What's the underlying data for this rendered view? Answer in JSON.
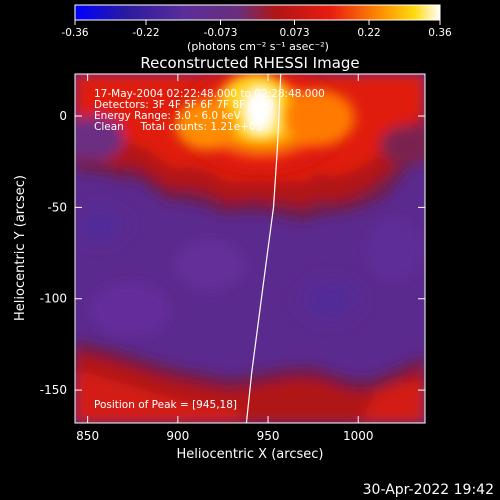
{
  "chart_data": {
    "type": "heatmap",
    "title": "Reconstructed RHESSI Image",
    "xlabel": "Heliocentric X (arcsec)",
    "ylabel": "Heliocentric Y (arcsec)",
    "xlim": [
      843,
      1037
    ],
    "ylim": [
      -168,
      23
    ],
    "x_ticks": [
      850,
      900,
      950,
      1000
    ],
    "y_ticks": [
      0,
      -50,
      -100,
      -150
    ],
    "colorbar": {
      "min": -0.36,
      "max": 0.36,
      "tick_values": [
        -0.36,
        -0.22,
        -0.073,
        0.073,
        0.22,
        0.36
      ],
      "tick_labels": [
        "-0.36",
        "-0.22",
        "-0.073",
        "0.073",
        "0.22",
        "0.36"
      ],
      "unit": "(photons cm⁻² s⁻¹ asec⁻²)",
      "colors": [
        "#0000ff",
        "#3a1a7a",
        "#6a2d9f",
        "#9a1a1a",
        "#e01010",
        "#ff8000",
        "#ffd000",
        "#ffffff"
      ]
    },
    "annotations": [
      "17-May-2004 02:22:48.000 to 02:28:48.000",
      "Detectors: 3F 4F 5F 6F 7F 8F  Att 0",
      "Energy Range: 3.0 - 6.0 keV",
      "Clean     Total counts: 1.21e+05"
    ],
    "peak_label": "Position of Peak = [945,18]",
    "peak": [
      945,
      18
    ],
    "limb_curve": [
      [
        938,
        -168
      ],
      [
        941,
        -140
      ],
      [
        945,
        -110
      ],
      [
        949,
        -80
      ],
      [
        953,
        -50
      ],
      [
        955,
        -20
      ],
      [
        956,
        0
      ],
      [
        957,
        23
      ]
    ]
  },
  "timestamp": "30-Apr-2022 19:42"
}
